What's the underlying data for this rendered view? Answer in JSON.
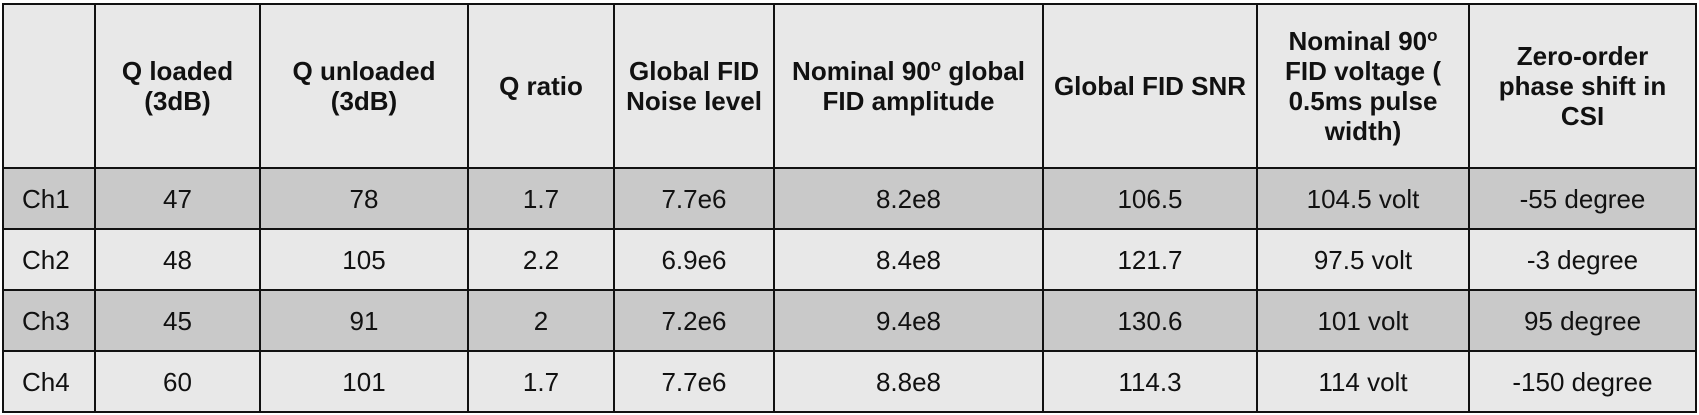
{
  "table": {
    "headers": [
      "",
      "Q loaded (3dB)",
      "Q unloaded (3dB)",
      "Q ratio",
      "Global FID Noise level",
      "Nominal 90o global FID amplitude",
      "Global FID SNR",
      "Nominal 90o FID voltage ( 0.5ms pulse width)",
      "Zero-order phase shift in CSI"
    ],
    "header_parts": {
      "nominal_amp_pre": "Nominal 90",
      "nominal_amp_sup": "o",
      "nominal_amp_post": " global FID amplitude",
      "nominal_volt_pre": "Nominal 90",
      "nominal_volt_sup": "o",
      "nominal_volt_post": " FID voltage ( 0.5ms pulse width)"
    },
    "rows": [
      {
        "label": "Ch1",
        "cells": [
          "47",
          "78",
          "1.7",
          "7.7e6",
          "8.2e8",
          "106.5",
          "104.5 volt",
          "-55 degree"
        ]
      },
      {
        "label": "Ch2",
        "cells": [
          "48",
          "105",
          "2.2",
          "6.9e6",
          "8.4e8",
          "121.7",
          "97.5 volt",
          "-3 degree"
        ]
      },
      {
        "label": "Ch3",
        "cells": [
          "45",
          "91",
          "2",
          "7.2e6",
          "9.4e8",
          "130.6",
          "101 volt",
          "95 degree"
        ]
      },
      {
        "label": "Ch4",
        "cells": [
          "60",
          "101",
          "1.7",
          "7.7e6",
          "8.8e8",
          "114.3",
          "114 volt",
          "-150 degree"
        ]
      }
    ]
  },
  "colors": {
    "header_bg": "#e8e8e8",
    "shaded_row_bg": "#c9c9c9",
    "light_row_bg": "#e8e8e8",
    "border": "#111111"
  }
}
